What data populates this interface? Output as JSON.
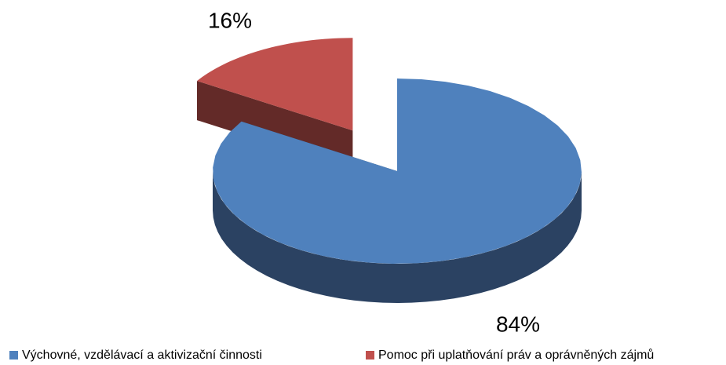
{
  "chart_data": {
    "type": "pie",
    "three_d": true,
    "categories": [
      "Výchovné, vzdělávací a aktivizační činnosti",
      "Pomoc při uplatňování práv a oprávněných zájmů"
    ],
    "values": [
      84,
      16
    ],
    "value_labels": [
      "84%",
      "16%"
    ],
    "colors": [
      "#4f81bd",
      "#c0504d"
    ],
    "side_colors": [
      "#2b4262",
      "#632a28"
    ],
    "exploded": [
      false,
      true
    ],
    "legend": "bottom"
  }
}
